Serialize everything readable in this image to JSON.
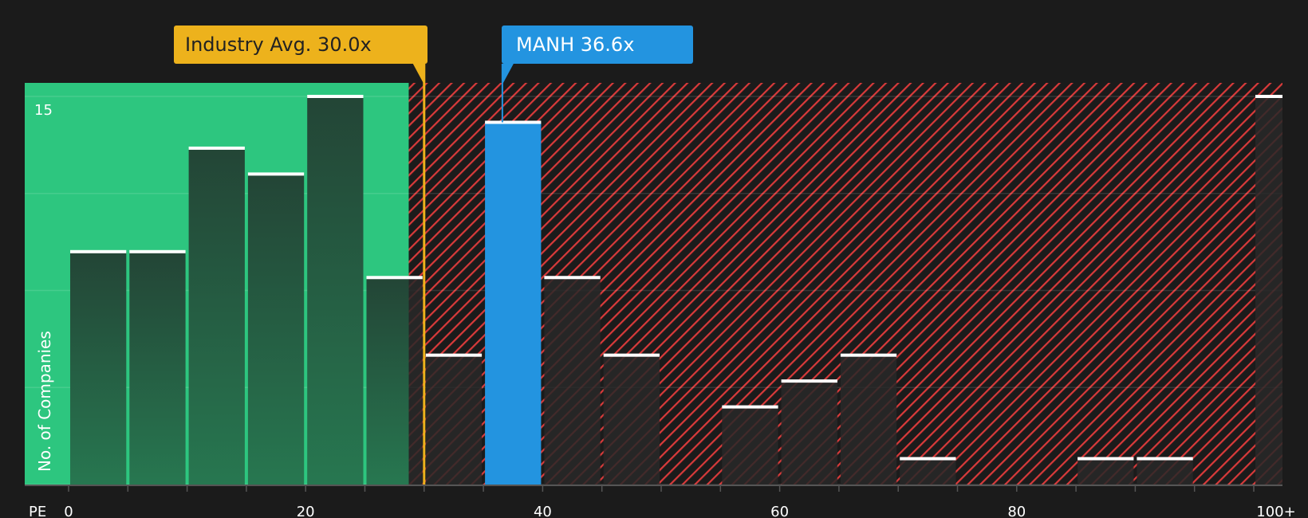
{
  "chart_data": {
    "type": "bar",
    "xlabel": "PE",
    "ylabel": "No. of Companies",
    "bin_width": 5,
    "x_ticks": [
      "0",
      "20",
      "40",
      "60",
      "80",
      "100+"
    ],
    "x_tick_values": [
      0,
      20,
      40,
      60,
      80,
      100
    ],
    "y_ticks": [
      "15"
    ],
    "ylim": [
      0,
      15.5
    ],
    "grid": true,
    "bins": [
      {
        "from": 0,
        "to": 5,
        "count": 9
      },
      {
        "from": 5,
        "to": 10,
        "count": 9
      },
      {
        "from": 10,
        "to": 15,
        "count": 13
      },
      {
        "from": 15,
        "to": 20,
        "count": 12
      },
      {
        "from": 20,
        "to": 25,
        "count": 15
      },
      {
        "from": 25,
        "to": 30,
        "count": 8
      },
      {
        "from": 30,
        "to": 35,
        "count": 5
      },
      {
        "from": 35,
        "to": 40,
        "count": 14,
        "highlight": true
      },
      {
        "from": 40,
        "to": 45,
        "count": 8
      },
      {
        "from": 45,
        "to": 50,
        "count": 5
      },
      {
        "from": 50,
        "to": 55,
        "count": 0
      },
      {
        "from": 55,
        "to": 60,
        "count": 3
      },
      {
        "from": 60,
        "to": 65,
        "count": 4
      },
      {
        "from": 65,
        "to": 70,
        "count": 5
      },
      {
        "from": 70,
        "to": 75,
        "count": 1
      },
      {
        "from": 75,
        "to": 80,
        "count": 0
      },
      {
        "from": 80,
        "to": 85,
        "count": 0
      },
      {
        "from": 85,
        "to": 90,
        "count": 1
      },
      {
        "from": 90,
        "to": 95,
        "count": 1
      },
      {
        "from": 95,
        "to": 100,
        "count": 0
      },
      {
        "from": 100,
        "to": null,
        "label": "100+",
        "count": 15
      }
    ],
    "undervalued_region_max_pe": 28.7,
    "annotations": {
      "industry": {
        "label": "Industry Avg. 30.0x",
        "value": 30.0,
        "color": "#edb21c"
      },
      "company": {
        "label": "MANH 36.6x",
        "value": 36.6,
        "color": "#2394e0"
      }
    },
    "colors": {
      "background": "#1b1b1b",
      "good_region": "#2dc67f",
      "bad_hatch": "#d93a3a",
      "bar_green_top": "#234536",
      "bar_green_bottom": "#277750",
      "highlight": "#2394e0",
      "cap": "#ffffff"
    }
  }
}
